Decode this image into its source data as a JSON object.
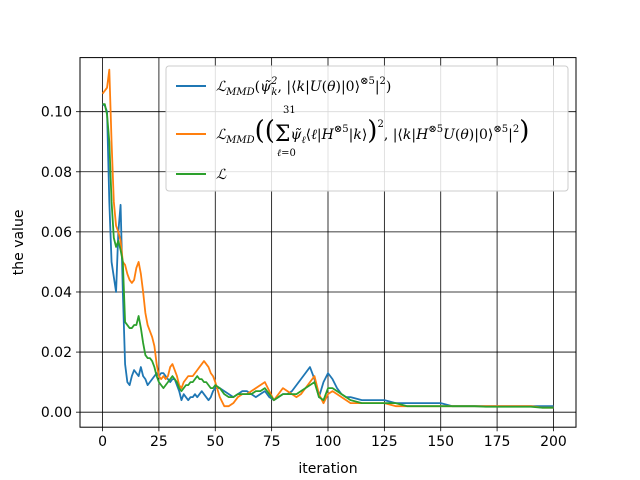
{
  "chart_data": {
    "type": "line",
    "xlabel": "iteration",
    "ylabel": "the value",
    "xlim": [
      -10,
      210
    ],
    "ylim": [
      -0.005,
      0.118
    ],
    "xticks": [
      0,
      25,
      50,
      75,
      100,
      125,
      150,
      175,
      200
    ],
    "xtick_labels": [
      "0",
      "25",
      "50",
      "75",
      "100",
      "125",
      "150",
      "175",
      "200"
    ],
    "yticks": [
      0.0,
      0.02,
      0.04,
      0.06,
      0.08,
      0.1
    ],
    "ytick_labels": [
      "0.00",
      "0.02",
      "0.04",
      "0.06",
      "0.08",
      "0.10"
    ],
    "grid": true,
    "legend_position": "upper-right",
    "series": [
      {
        "name": "L_MMD(ψ̃_k², |⟨k|U(θ)|0⟩^{⊗5}|²)",
        "color": "#1f77b4",
        "x": [
          0,
          1,
          2,
          3,
          4,
          5,
          6,
          7,
          8,
          9,
          10,
          11,
          12,
          13,
          14,
          15,
          16,
          17,
          18,
          19,
          20,
          21,
          22,
          23,
          24,
          25,
          26,
          27,
          28,
          29,
          30,
          31,
          32,
          33,
          34,
          35,
          36,
          37,
          38,
          39,
          40,
          41,
          42,
          43,
          44,
          45,
          46,
          47,
          48,
          49,
          50,
          52,
          54,
          56,
          58,
          60,
          62,
          64,
          66,
          68,
          70,
          72,
          74,
          76,
          78,
          80,
          82,
          84,
          86,
          88,
          90,
          92,
          94,
          96,
          98,
          100,
          102,
          104,
          106,
          108,
          110,
          115,
          120,
          125,
          130,
          135,
          140,
          145,
          150,
          155,
          160,
          165,
          170,
          175,
          180,
          185,
          190,
          195,
          200
        ],
        "y": [
          0.1025,
          0.102,
          0.1,
          0.07,
          0.05,
          0.045,
          0.04,
          0.06,
          0.069,
          0.04,
          0.016,
          0.01,
          0.009,
          0.012,
          0.014,
          0.013,
          0.012,
          0.015,
          0.012,
          0.011,
          0.009,
          0.01,
          0.011,
          0.012,
          0.013,
          0.012,
          0.013,
          0.013,
          0.012,
          0.011,
          0.01,
          0.011,
          0.011,
          0.009,
          0.007,
          0.004,
          0.006,
          0.005,
          0.004,
          0.005,
          0.005,
          0.006,
          0.005,
          0.006,
          0.007,
          0.006,
          0.005,
          0.004,
          0.005,
          0.007,
          0.008,
          0.008,
          0.007,
          0.006,
          0.005,
          0.006,
          0.007,
          0.007,
          0.006,
          0.005,
          0.006,
          0.007,
          0.005,
          0.004,
          0.005,
          0.006,
          0.006,
          0.007,
          0.009,
          0.011,
          0.013,
          0.015,
          0.011,
          0.005,
          0.01,
          0.013,
          0.011,
          0.008,
          0.006,
          0.005,
          0.005,
          0.004,
          0.004,
          0.004,
          0.003,
          0.003,
          0.003,
          0.003,
          0.003,
          0.002,
          0.002,
          0.002,
          0.002,
          0.002,
          0.002,
          0.002,
          0.002,
          0.002,
          0.002
        ]
      },
      {
        "name": "L_MMD((Σ_{ℓ=0}^{31} ψ̃_ℓ⟨ℓ|H^{⊗5}|k⟩)², |⟨k|H^{⊗5}U(θ)|0⟩^{⊗5}|²)",
        "color": "#ff7f0e",
        "x": [
          0,
          1,
          2,
          3,
          4,
          5,
          6,
          7,
          8,
          9,
          10,
          11,
          12,
          13,
          14,
          15,
          16,
          17,
          18,
          19,
          20,
          21,
          22,
          23,
          24,
          25,
          26,
          27,
          28,
          29,
          30,
          31,
          32,
          33,
          34,
          35,
          36,
          37,
          38,
          39,
          40,
          41,
          42,
          43,
          44,
          45,
          46,
          47,
          48,
          49,
          50,
          52,
          54,
          56,
          58,
          60,
          62,
          64,
          66,
          68,
          70,
          72,
          74,
          76,
          78,
          80,
          82,
          84,
          86,
          88,
          90,
          92,
          94,
          96,
          98,
          100,
          102,
          104,
          106,
          108,
          110,
          115,
          120,
          125,
          130,
          135,
          140,
          145,
          150,
          155,
          160,
          165,
          170,
          175,
          180,
          185,
          190,
          195,
          200
        ],
        "y": [
          0.106,
          0.107,
          0.108,
          0.114,
          0.09,
          0.07,
          0.062,
          0.06,
          0.057,
          0.05,
          0.049,
          0.046,
          0.044,
          0.043,
          0.044,
          0.048,
          0.05,
          0.046,
          0.04,
          0.033,
          0.029,
          0.027,
          0.025,
          0.022,
          0.016,
          0.012,
          0.011,
          0.012,
          0.011,
          0.012,
          0.015,
          0.016,
          0.014,
          0.012,
          0.009,
          0.008,
          0.01,
          0.011,
          0.012,
          0.012,
          0.012,
          0.013,
          0.014,
          0.015,
          0.016,
          0.017,
          0.016,
          0.015,
          0.013,
          0.012,
          0.01,
          0.005,
          0.002,
          0.002,
          0.003,
          0.005,
          0.006,
          0.006,
          0.007,
          0.008,
          0.009,
          0.01,
          0.007,
          0.004,
          0.006,
          0.008,
          0.007,
          0.006,
          0.005,
          0.006,
          0.008,
          0.01,
          0.012,
          0.006,
          0.003,
          0.006,
          0.007,
          0.006,
          0.005,
          0.004,
          0.003,
          0.003,
          0.003,
          0.003,
          0.002,
          0.002,
          0.002,
          0.002,
          0.002,
          0.002,
          0.002,
          0.002,
          0.002,
          0.002,
          0.002,
          0.002,
          0.002,
          0.0015,
          0.0015
        ]
      },
      {
        "name": "L",
        "color": "#2ca02c",
        "x": [
          0,
          1,
          2,
          3,
          4,
          5,
          6,
          7,
          8,
          9,
          10,
          11,
          12,
          13,
          14,
          15,
          16,
          17,
          18,
          19,
          20,
          21,
          22,
          23,
          24,
          25,
          26,
          27,
          28,
          29,
          30,
          31,
          32,
          33,
          34,
          35,
          36,
          37,
          38,
          39,
          40,
          41,
          42,
          43,
          44,
          45,
          46,
          47,
          48,
          49,
          50,
          52,
          54,
          56,
          58,
          60,
          62,
          64,
          66,
          68,
          70,
          72,
          74,
          76,
          78,
          80,
          82,
          84,
          86,
          88,
          90,
          92,
          94,
          96,
          98,
          100,
          102,
          104,
          106,
          108,
          110,
          115,
          120,
          125,
          130,
          135,
          140,
          145,
          150,
          155,
          160,
          165,
          170,
          175,
          180,
          185,
          190,
          195,
          200
        ],
        "y": [
          0.1025,
          0.1025,
          0.099,
          0.09,
          0.07,
          0.058,
          0.055,
          0.057,
          0.054,
          0.05,
          0.03,
          0.029,
          0.028,
          0.028,
          0.029,
          0.029,
          0.032,
          0.028,
          0.023,
          0.019,
          0.018,
          0.018,
          0.017,
          0.015,
          0.012,
          0.01,
          0.009,
          0.008,
          0.009,
          0.01,
          0.011,
          0.012,
          0.011,
          0.01,
          0.008,
          0.007,
          0.008,
          0.009,
          0.009,
          0.01,
          0.01,
          0.011,
          0.012,
          0.011,
          0.011,
          0.01,
          0.01,
          0.009,
          0.008,
          0.008,
          0.009,
          0.008,
          0.006,
          0.005,
          0.005,
          0.006,
          0.006,
          0.006,
          0.006,
          0.007,
          0.007,
          0.008,
          0.006,
          0.004,
          0.005,
          0.006,
          0.006,
          0.006,
          0.006,
          0.007,
          0.008,
          0.009,
          0.01,
          0.005,
          0.004,
          0.008,
          0.008,
          0.007,
          0.006,
          0.005,
          0.004,
          0.003,
          0.003,
          0.003,
          0.003,
          0.002,
          0.002,
          0.002,
          0.002,
          0.002,
          0.002,
          0.002,
          0.0018,
          0.0018,
          0.0018,
          0.0018,
          0.0018,
          0.0015,
          0.0015
        ]
      }
    ]
  }
}
